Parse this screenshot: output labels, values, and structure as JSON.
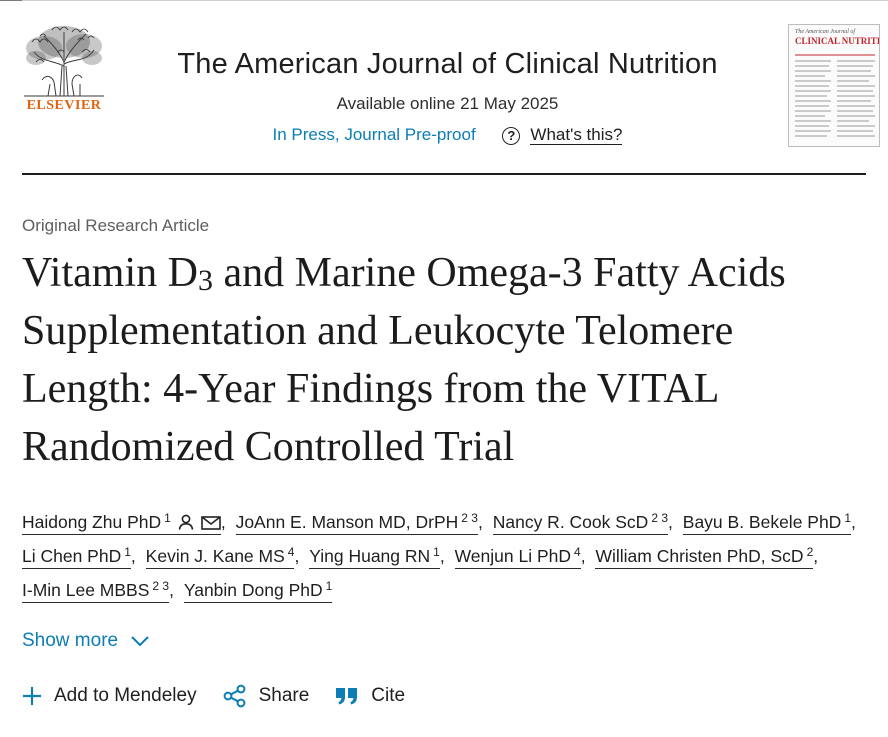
{
  "header": {
    "publisher": "ELSEVIER",
    "journal_title": "The American Journal of Clinical Nutrition",
    "available_online": "Available online 21 May 2025",
    "status_link": "In Press, Journal Pre-proof",
    "help_label": "What's this?",
    "cover": {
      "line1": "The American Journal of",
      "line2": "CLINICAL NUTRITION"
    }
  },
  "article": {
    "type": "Original Research Article",
    "title_part1": "Vitamin D",
    "title_sub": "3",
    "title_part2": " and Marine Omega-3 Fatty Acids Supplementation and Leukocyte Telomere Length: 4-Year Findings from the VITAL Randomized Controlled Trial"
  },
  "authors": [
    {
      "name": "Haidong Zhu PhD",
      "sup": "1"
    },
    {
      "name": "JoAnn E. Manson MD, DrPH",
      "sup": "2 3"
    },
    {
      "name": "Nancy R. Cook ScD",
      "sup": "2 3"
    },
    {
      "name": "Bayu B. Bekele PhD",
      "sup": "1"
    },
    {
      "name": "Li Chen PhD",
      "sup": "1"
    },
    {
      "name": "Kevin J. Kane MS",
      "sup": "4"
    },
    {
      "name": "Ying Huang RN",
      "sup": "1"
    },
    {
      "name": "Wenjun Li PhD",
      "sup": "4"
    },
    {
      "name": "William Christen PhD, ScD",
      "sup": "2"
    },
    {
      "name": "I-Min Lee MBBS",
      "sup": "2 3"
    },
    {
      "name": "Yanbin Dong PhD",
      "sup": "1"
    }
  ],
  "show_more_label": "Show more",
  "actions": {
    "mendeley": "Add to Mendeley",
    "share": "Share",
    "cite": "Cite"
  },
  "colors": {
    "link": "#0c7db5",
    "publisher": "#e2640f",
    "cover_title": "#c0262d"
  },
  "icons": {
    "author": "person-icon",
    "email": "envelope-icon",
    "help": "question-circle-icon",
    "show_more": "chevron-down-icon",
    "mendeley": "plus-icon",
    "share": "share-icon",
    "cite": "quote-icon"
  }
}
